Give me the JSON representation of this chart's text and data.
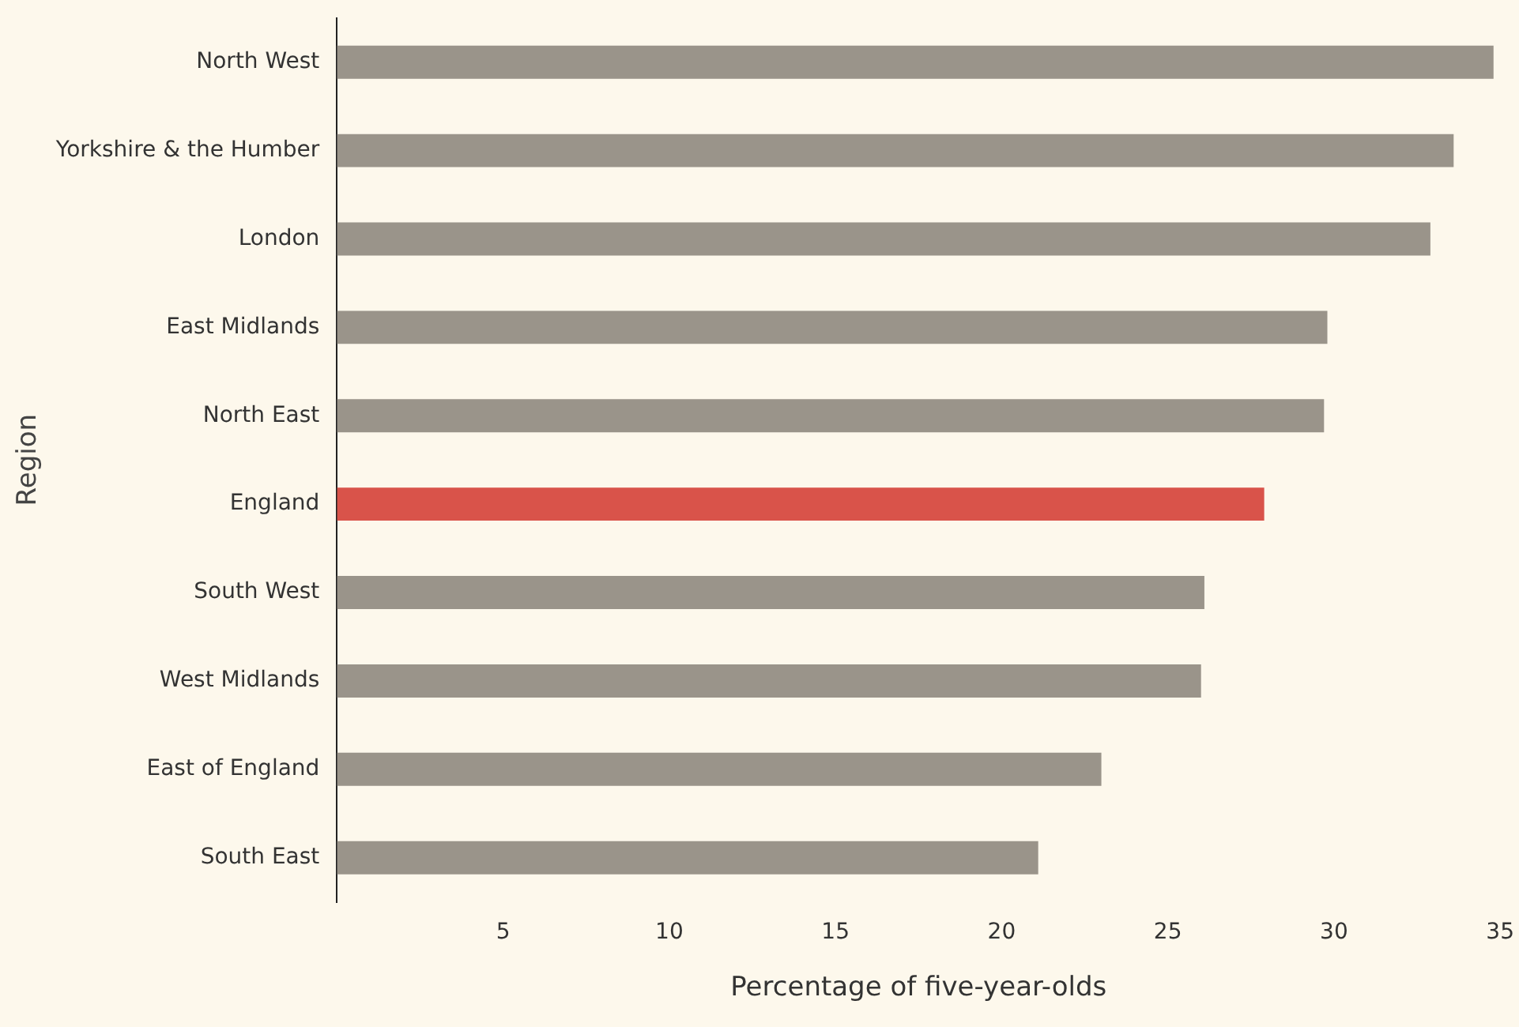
{
  "chart_data": {
    "type": "bar",
    "orientation": "horizontal",
    "xlabel": "Percentage of five-year-olds",
    "ylabel": "Region",
    "categories": [
      "North West",
      "Yorkshire & the Humber",
      "London",
      "East Midlands",
      "North East",
      "England",
      "South West",
      "West Midlands",
      "East of England",
      "South East"
    ],
    "values": [
      34.8,
      33.6,
      32.9,
      29.8,
      29.7,
      27.9,
      26.1,
      26.0,
      23.0,
      21.1
    ],
    "colors": [
      "#9a948a",
      "#9a948a",
      "#9a948a",
      "#9a948a",
      "#9a948a",
      "#d9534a",
      "#9a948a",
      "#9a948a",
      "#9a948a",
      "#9a948a"
    ],
    "xlim": [
      0,
      35
    ],
    "xticks": [
      5,
      10,
      15,
      20,
      25,
      30,
      35
    ],
    "grid": false,
    "legend": false
  }
}
